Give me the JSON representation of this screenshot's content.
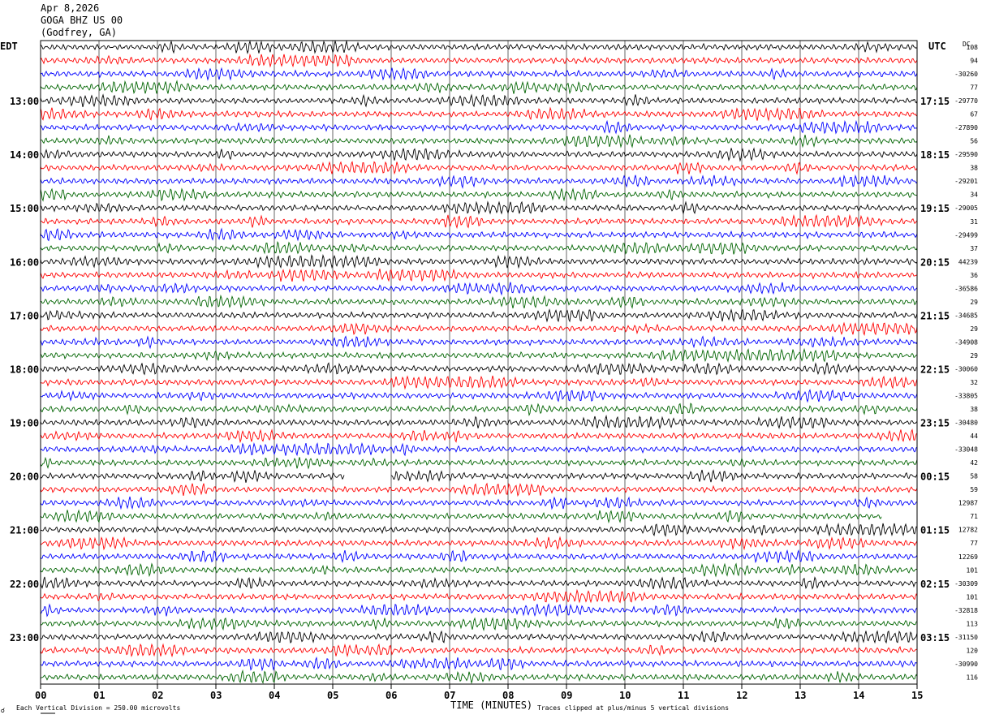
{
  "header": {
    "date": "Apr 8,2026",
    "station": "GOGA BHZ US 00",
    "location": "(Godfrey, GA)"
  },
  "left_axis_label": "EDT",
  "right_axis_label": "UTC",
  "dc_label": "DC",
  "footer": {
    "scale_note": "Each Vertical Division =  250.00 microvolts",
    "clip_note": "Traces clipped at plus/minus 5 vertical divisions"
  },
  "chart_data": {
    "type": "line",
    "title": "GOGA BHZ US 00",
    "xlabel": "TIME (MINUTES)",
    "xlim": [
      0,
      15
    ],
    "x_ticks": [
      "00",
      "01",
      "02",
      "03",
      "04",
      "05",
      "06",
      "07",
      "08",
      "09",
      "10",
      "11",
      "12",
      "13",
      "14",
      "15"
    ],
    "traces_per_hour": 4,
    "trace_count": 48,
    "trace_colors": [
      "#000000",
      "#ff0000",
      "#0000ff",
      "#006400"
    ],
    "left_hour_labels": [
      "13:00",
      "14:00",
      "15:00",
      "16:00",
      "17:00",
      "18:00",
      "19:00",
      "20:00",
      "21:00",
      "22:00",
      "23:00"
    ],
    "right_hour_labels": [
      "17:15",
      "18:15",
      "19:15",
      "20:15",
      "21:15",
      "22:15",
      "23:15",
      "00:15",
      "01:15",
      "02:15",
      "03:15"
    ],
    "dc_offsets": [
      "108",
      "94",
      "-30260",
      "77",
      "-29770",
      "67",
      "-27890",
      "56",
      "-29590",
      "38",
      "-29201",
      "34",
      "-29005",
      "31",
      "-29499",
      "37",
      "44239",
      "36",
      "-36586",
      "29",
      "-34685",
      "29",
      "-34908",
      "29",
      "-30060",
      "32",
      "-33805",
      "38",
      "-30480",
      "44",
      "-33048",
      "42",
      "58",
      "59",
      "12987",
      "71",
      "12782",
      "77",
      "12269",
      "101",
      "-30309",
      "101",
      "-32818",
      "113",
      "-31150",
      "120",
      "-30990",
      "116"
    ],
    "gap_trace_index": 32,
    "gap_minutes": [
      5.2,
      6.0
    ],
    "partial_end_trace_index": 35,
    "partial_end_minute": 14.4,
    "clip_divisions": 5,
    "microvolts_per_division": 250.0
  }
}
